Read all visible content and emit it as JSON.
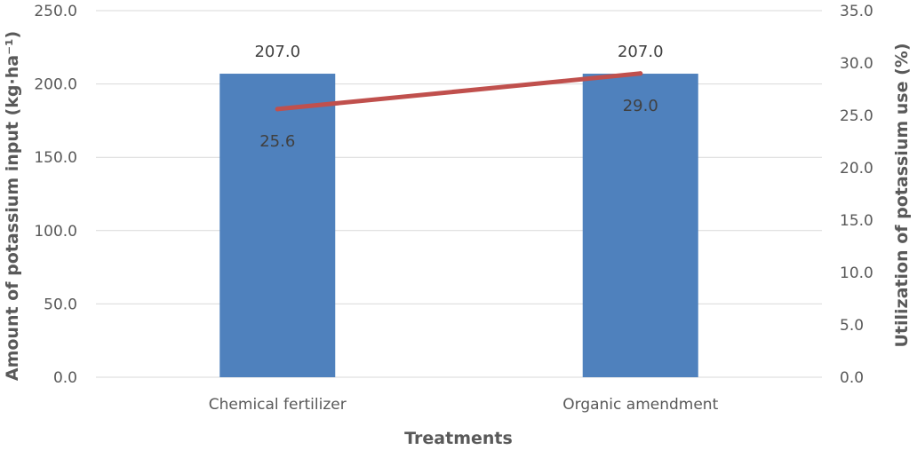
{
  "chart_data": {
    "type": "bar+line",
    "title": "",
    "categories": [
      "Chemical fertilizer",
      "Organic amendment"
    ],
    "xlabel": "Treatments",
    "series": [
      {
        "name": "Amount of potassium input",
        "type": "bar",
        "axis": "left",
        "values": [
          207.0,
          207.0
        ],
        "labels": [
          "207.0",
          "207.0"
        ]
      },
      {
        "name": "Utilization of potassium use",
        "type": "line",
        "axis": "right",
        "values": [
          25.6,
          29.0
        ],
        "labels": [
          "25.6",
          "29.0"
        ]
      }
    ],
    "ylabel_left": "Amount of potassium input (kg·ha⁻¹)",
    "ylabel_right": "Utilization of potassium use (%)",
    "ylim_left": [
      0,
      250
    ],
    "ylim_right": [
      0,
      35
    ],
    "yticks_left": [
      "0.0",
      "50.0",
      "100.0",
      "150.0",
      "200.0",
      "250.0"
    ],
    "yticks_right": [
      "0.0",
      "5.0",
      "10.0",
      "15.0",
      "20.0",
      "25.0",
      "30.0",
      "35.0"
    ],
    "grid": true,
    "legend": "none"
  },
  "colors": {
    "bar": "#4f81bd",
    "line": "#c0504d",
    "grid": "#d9d9d9",
    "text": "#595959"
  }
}
